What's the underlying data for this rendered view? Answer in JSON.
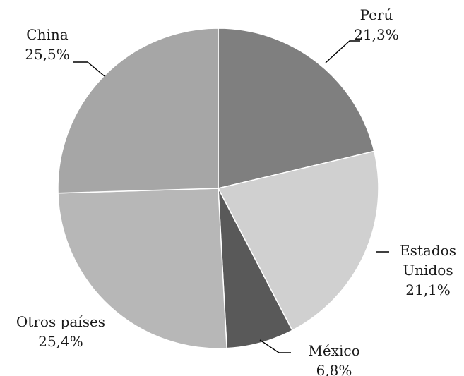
{
  "chart_data": {
    "type": "pie",
    "start_angle_deg": 0,
    "direction": "clockwise",
    "slices": [
      {
        "label": "Perú",
        "label_lines": [
          "Perú"
        ],
        "value": 21.3,
        "value_text": "21,3%",
        "color": "#7f7f7f"
      },
      {
        "label": "Estados Unidos",
        "label_lines": [
          "Estados",
          "Unidos"
        ],
        "value": 21.1,
        "value_text": "21,1%",
        "color": "#d0d0d0"
      },
      {
        "label": "México",
        "label_lines": [
          "México"
        ],
        "value": 6.8,
        "value_text": "6,8%",
        "color": "#595959"
      },
      {
        "label": "Otros países",
        "label_lines": [
          "Otros países"
        ],
        "value": 25.4,
        "value_text": "25,4%",
        "color": "#b7b7b7"
      },
      {
        "label": "China",
        "label_lines": [
          "China"
        ],
        "value": 25.5,
        "value_text": "25,5%",
        "color": "#a6a6a6"
      }
    ]
  }
}
